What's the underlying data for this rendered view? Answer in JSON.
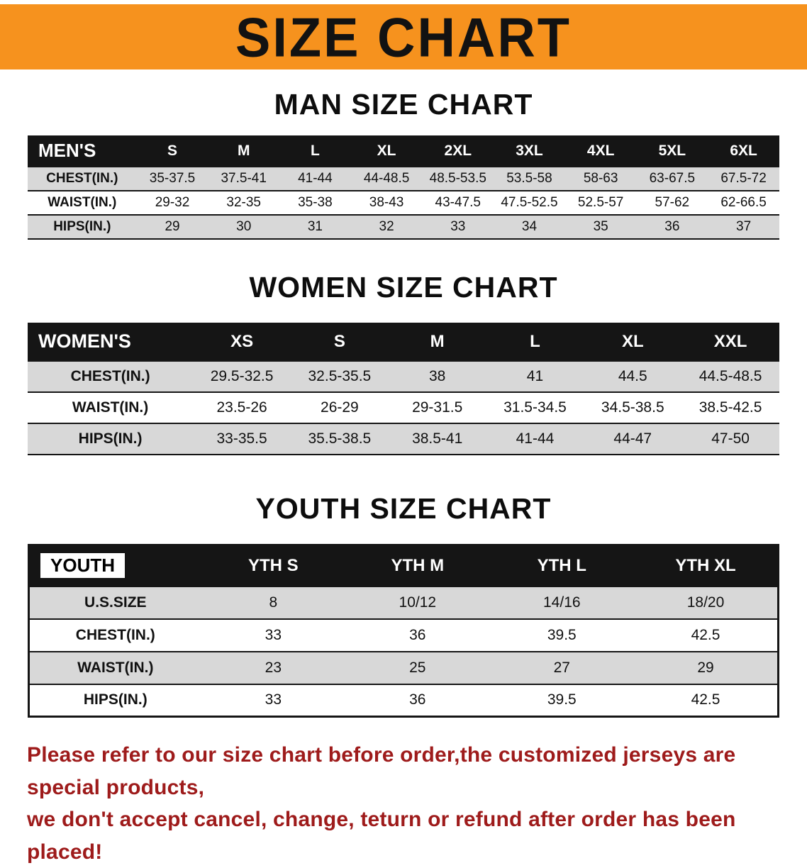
{
  "banner": {
    "title": "SIZE CHART",
    "bg_color": "#f6921e"
  },
  "sections": [
    {
      "heading": "MAN SIZE CHART",
      "table": {
        "title": "MEN'S",
        "columns": [
          "S",
          "M",
          "L",
          "XL",
          "2XL",
          "3XL",
          "4XL",
          "5XL",
          "6XL"
        ],
        "rows": [
          {
            "label": "CHEST(IN.)",
            "values": [
              "35-37.5",
              "37.5-41",
              "41-44",
              "44-48.5",
              "48.5-53.5",
              "53.5-58",
              "58-63",
              "63-67.5",
              "67.5-72"
            ]
          },
          {
            "label": "WAIST(IN.)",
            "values": [
              "29-32",
              "32-35",
              "35-38",
              "38-43",
              "43-47.5",
              "47.5-52.5",
              "52.5-57",
              "57-62",
              "62-66.5"
            ]
          },
          {
            "label": "HIPS(IN.)",
            "values": [
              "29",
              "30",
              "31",
              "32",
              "33",
              "34",
              "35",
              "36",
              "37"
            ]
          }
        ]
      }
    },
    {
      "heading": "WOMEN SIZE CHART",
      "table": {
        "title": "WOMEN'S",
        "columns": [
          "XS",
          "S",
          "M",
          "L",
          "XL",
          "XXL"
        ],
        "rows": [
          {
            "label": "CHEST(IN.)",
            "values": [
              "29.5-32.5",
              "32.5-35.5",
              "38",
              "41",
              "44.5",
              "44.5-48.5"
            ]
          },
          {
            "label": "WAIST(IN.)",
            "values": [
              "23.5-26",
              "26-29",
              "29-31.5",
              "31.5-34.5",
              "34.5-38.5",
              "38.5-42.5"
            ]
          },
          {
            "label": "HIPS(IN.)",
            "values": [
              "33-35.5",
              "35.5-38.5",
              "38.5-41",
              "41-44",
              "44-47",
              "47-50"
            ]
          }
        ]
      }
    },
    {
      "heading": "YOUTH SIZE CHART",
      "table": {
        "title": "YOUTH",
        "columns": [
          "YTH S",
          "YTH M",
          "YTH L",
          "YTH XL"
        ],
        "rows": [
          {
            "label": "U.S.SIZE",
            "values": [
              "8",
              "10/12",
              "14/16",
              "18/20"
            ]
          },
          {
            "label": "CHEST(IN.)",
            "values": [
              "33",
              "36",
              "39.5",
              "42.5"
            ]
          },
          {
            "label": "WAIST(IN.)",
            "values": [
              "23",
              "25",
              "27",
              "29"
            ]
          },
          {
            "label": "HIPS(IN.)",
            "values": [
              "33",
              "36",
              "39.5",
              "42.5"
            ]
          }
        ]
      }
    }
  ],
  "footer": {
    "lines": [
      "Please refer to our size chart before order,the customized jerseys are special products,",
      "we don't accept cancel, change, teturn or refund after order has been placed!"
    ],
    "color": "#9e1b1b"
  },
  "colors": {
    "banner_orange": "#f6921e",
    "table_header_black": "#151515",
    "row_stripe_gray": "#d8d8d8",
    "footer_red": "#9e1b1b"
  }
}
